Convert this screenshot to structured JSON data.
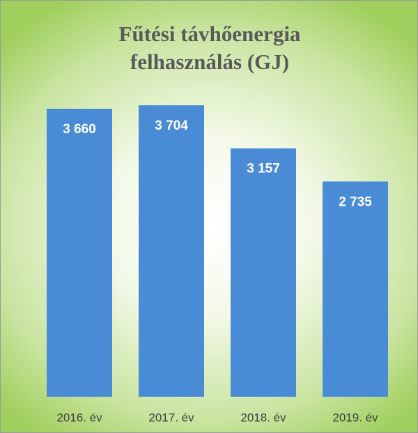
{
  "chart_data": {
    "type": "bar",
    "title": "Fűtési távhőenergia felhasználás (GJ)",
    "categories": [
      "2016. év",
      "2017. év",
      "2018. év",
      "2019. év"
    ],
    "values": [
      3660,
      3704,
      3157,
      2735
    ],
    "value_labels": [
      "3 660",
      "3 704",
      "3 157",
      "2 735"
    ],
    "color": "#4a8bd6"
  }
}
